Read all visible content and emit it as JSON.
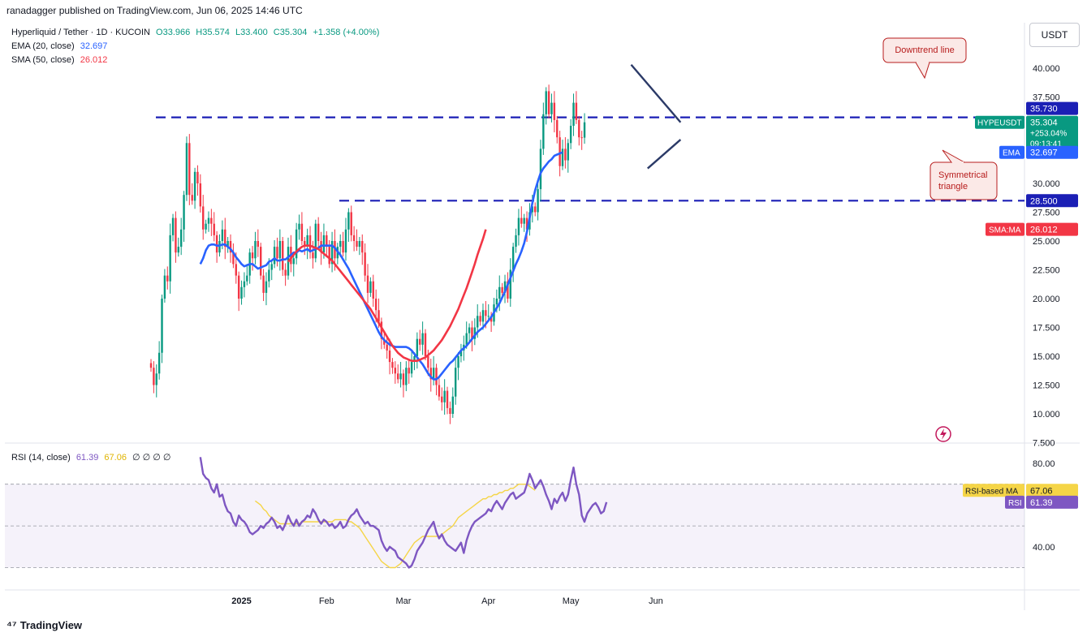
{
  "publisher": "ranadagger published on TradingView.com, Jun 06, 2025 14:46 UTC",
  "header": {
    "symbol": "Hyperliquid / Tether · 1D · KUCOIN",
    "open": "O33.966",
    "high": "H35.574",
    "low": "L33.400",
    "close": "C35.304",
    "change": "+1.358 (+4.00%)",
    "ema_label": "EMA (20, close)",
    "ema_value": "32.697",
    "sma_label": "SMA (50, close)",
    "sma_value": "26.012",
    "rsi_label": "RSI (14, close)",
    "rsi_value": "61.39",
    "rsi_ma_value": "67.06",
    "rsi_extra": "∅ ∅ ∅ ∅"
  },
  "currency_button": "USDT",
  "footer_brand": "TradingView",
  "annotations": {
    "downtrend": "Downtrend line",
    "triangle_line1": "Symmetrical",
    "triangle_line2": "triangle"
  },
  "price_tags": {
    "resistance": "35.730",
    "symbol": "HYPEUSDT",
    "last": "35.304",
    "pct": "+253.04%",
    "countdown": "09:13:41",
    "ema_tag": "EMA",
    "ema": "32.697",
    "support": "28.500",
    "sma_tag": "SMA:MA",
    "sma": "26.012"
  },
  "rsi_tags": {
    "ma_tag": "RSI-based MA",
    "ma": "67.06",
    "rsi_tag": "RSI",
    "rsi": "61.39"
  },
  "colors": {
    "up": "#089981",
    "down": "#f23645",
    "ema": "#2962ff",
    "sma": "#f23645",
    "levels": "#1b1fb5",
    "rsi": "#7e57c2",
    "rsi_ma": "#f5d547"
  },
  "chart_data": [
    {
      "type": "candlestick",
      "title": "Hyperliquid / Tether · 1D · KUCOIN",
      "ylim": [
        7.5,
        42.5
      ],
      "y_ticks": [
        "40.000",
        "37.500",
        "30.000",
        "27.500",
        "25.000",
        "22.500",
        "20.000",
        "17.500",
        "15.000",
        "12.500",
        "10.000",
        "7.500"
      ],
      "x_ticks": [
        "2025",
        "Feb",
        "Mar",
        "Apr",
        "May",
        "Jun"
      ],
      "x_range": [
        "2024-11-29",
        "2025-06-06"
      ],
      "horizontal_levels": [
        35.73,
        28.5
      ],
      "trendlines": [
        {
          "name": "Downtrend line",
          "from": [
            "2025-05-23",
            40.3
          ],
          "to": [
            "2025-06-10",
            35.3
          ]
        },
        {
          "name": "Symmetrical triangle",
          "from": [
            "2025-05-29",
            31.3
          ],
          "to": [
            "2025-06-10",
            33.8
          ]
        }
      ],
      "series": [
        {
          "name": "HYPEUSDT",
          "start": "2024-11-29",
          "close": [
            14.0,
            12.5,
            13.5,
            15.3,
            20.0,
            22.0,
            21.5,
            25.5,
            27.0,
            24.0,
            24.5,
            26.0,
            29.0,
            33.5,
            29.0,
            28.5,
            31.0,
            30.0,
            28.0,
            26.0,
            26.5,
            27.0,
            26.5,
            25.5,
            24.0,
            25.0,
            26.0,
            24.5,
            25.0,
            24.0,
            23.0,
            22.0,
            20.0,
            21.0,
            21.5,
            22.0,
            24.0,
            23.5,
            25.0,
            24.5,
            22.0,
            20.5,
            21.5,
            22.5,
            23.0,
            24.5,
            23.5,
            25.0,
            22.5,
            22.0,
            24.5,
            23.0,
            23.5,
            26.0,
            26.5,
            25.0,
            24.5,
            25.5,
            24.0,
            23.5,
            26.5,
            25.0,
            24.0,
            25.5,
            24.5,
            23.0,
            25.0,
            23.5,
            24.5,
            25.0,
            24.0,
            26.0,
            27.5,
            25.5,
            25.0,
            24.5,
            25.0,
            24.0,
            22.0,
            20.5,
            21.5,
            20.0,
            19.0,
            18.0,
            16.5,
            16.0,
            15.5,
            14.5,
            14.0,
            13.5,
            13.0,
            13.5,
            12.5,
            14.0,
            13.5,
            14.5,
            15.0,
            16.5,
            16.0,
            17.0,
            15.0,
            14.0,
            13.0,
            14.0,
            12.5,
            11.5,
            11.0,
            12.0,
            10.5,
            10.0,
            11.5,
            14.0,
            15.0,
            15.5,
            16.0,
            17.0,
            17.5,
            16.5,
            17.5,
            18.5,
            18.0,
            19.0,
            18.5,
            18.5,
            18.0,
            19.5,
            20.0,
            21.0,
            20.5,
            21.5,
            20.0,
            22.5,
            24.5,
            25.5,
            27.0,
            26.5,
            27.0,
            26.0,
            27.5,
            28.0,
            27.5,
            29.5,
            33.0,
            36.0,
            38.0,
            36.0,
            37.0,
            35.5,
            34.0,
            31.5,
            33.0,
            32.0,
            33.5,
            35.0,
            37.0,
            35.5,
            34.0,
            33.97,
            35.3
          ]
        },
        {
          "name": "EMA (20, close)",
          "start": "2024-12-17",
          "values": [
            23.0,
            23.5,
            24.2,
            24.6,
            24.7,
            24.7,
            24.6,
            24.6,
            24.7,
            24.7,
            24.5,
            24.3,
            24.0,
            23.6,
            23.3,
            23.0,
            22.8,
            22.9,
            23.0,
            23.0,
            22.8,
            22.6,
            22.7,
            22.8,
            22.9,
            23.2,
            23.3,
            23.5,
            23.3,
            23.3,
            23.4,
            23.4,
            23.6,
            23.8,
            24.0,
            24.0,
            24.2,
            24.1,
            24.2,
            24.3,
            24.1,
            24.2,
            24.3,
            24.4,
            24.6,
            24.6,
            24.6,
            24.6,
            24.6,
            24.4,
            24.1,
            23.8,
            23.4,
            23.0,
            22.6,
            22.1,
            21.6,
            21.1,
            20.6,
            20.1,
            19.6,
            19.1,
            18.6,
            18.1,
            17.6,
            17.1,
            16.7,
            16.4,
            16.2,
            16.0,
            15.9,
            15.8,
            15.8,
            15.8,
            15.8,
            15.8,
            15.7,
            15.5,
            15.2,
            14.9,
            14.6,
            14.3,
            13.9,
            13.5,
            13.2,
            13.0,
            13.0,
            13.2,
            13.5,
            13.8,
            14.1,
            14.4,
            14.6,
            14.9,
            15.2,
            15.5,
            15.7,
            15.9,
            16.2,
            16.5,
            16.8,
            17.1,
            17.3,
            17.5,
            17.8,
            18.1,
            18.4,
            18.8,
            19.2,
            19.6,
            20.1,
            20.6,
            21.2,
            21.8,
            22.4,
            23.0,
            23.5,
            24.1,
            24.8,
            25.8,
            27.0,
            28.3,
            29.4,
            30.2,
            30.9,
            31.3,
            31.6,
            31.9,
            32.1,
            32.4,
            32.5,
            32.6,
            32.7
          ]
        },
        {
          "name": "SMA (50, close)",
          "start": "2025-01-18",
          "values": [
            23.2,
            23.5,
            23.8,
            24.1,
            24.3,
            24.5,
            24.6,
            24.6,
            24.6,
            24.5,
            24.4,
            24.3,
            24.1,
            23.9,
            23.7,
            23.5,
            23.3,
            23.0,
            22.7,
            22.4,
            22.1,
            21.8,
            21.5,
            21.2,
            20.9,
            20.6,
            20.3,
            20.0,
            19.7,
            19.4,
            19.1,
            18.7,
            18.3,
            17.9,
            17.5,
            17.1,
            16.7,
            16.3,
            15.9,
            15.6,
            15.3,
            15.1,
            14.9,
            14.8,
            14.7,
            14.6,
            14.6,
            14.6,
            14.7,
            14.8,
            14.9,
            15.1,
            15.3,
            15.5,
            15.8,
            16.1,
            16.4,
            16.8,
            17.2,
            17.6,
            18.1,
            18.6,
            19.1,
            19.7,
            20.3,
            20.9,
            21.6,
            22.3,
            23.0,
            23.8,
            24.5,
            25.2,
            26.0
          ]
        }
      ]
    },
    {
      "type": "line",
      "title": "RSI (14, close)",
      "ylim": [
        20,
        85
      ],
      "y_ticks": [
        "80.00",
        "40.00"
      ],
      "bands": {
        "upper": 70,
        "middle": 50,
        "lower": 30
      },
      "series": [
        {
          "name": "RSI (14, close)",
          "start": "2024-12-17",
          "values": [
            83,
            75,
            73,
            72,
            68,
            66,
            70,
            64,
            65,
            60,
            57,
            56,
            52,
            50,
            55,
            53,
            52,
            50,
            47,
            46,
            47,
            48,
            50,
            49,
            51,
            52,
            54,
            52,
            49,
            50,
            48,
            51,
            55,
            52,
            50,
            53,
            50,
            52,
            53,
            55,
            54,
            58,
            56,
            53,
            51,
            53,
            52,
            50,
            51,
            49,
            50,
            52,
            49,
            50,
            53,
            55,
            56,
            58,
            55,
            53,
            51,
            52,
            50,
            50,
            49,
            48,
            43,
            40,
            38,
            40,
            39,
            38,
            35,
            34,
            33,
            32,
            30,
            31,
            34,
            38,
            40,
            42,
            45,
            48,
            50,
            52,
            47,
            44,
            46,
            43,
            41,
            40,
            39,
            38,
            40,
            42,
            37,
            43,
            47,
            50,
            52,
            53,
            54,
            55,
            56,
            58,
            57,
            60,
            62,
            60,
            58,
            61,
            63,
            65,
            66,
            63,
            64,
            65,
            66,
            70,
            75,
            72,
            68,
            70,
            72,
            69,
            65,
            62,
            58,
            63,
            61,
            64,
            66,
            62,
            65,
            72,
            78,
            70,
            65,
            55,
            52,
            56,
            58,
            60,
            61,
            59,
            56,
            57,
            61.39
          ]
        },
        {
          "name": "RSI-based MA",
          "start": "2025-01-06",
          "values": [
            62,
            61,
            60,
            58,
            57,
            55,
            54,
            53,
            52,
            51,
            51,
            51,
            51,
            51,
            51,
            51,
            51,
            52,
            52,
            52,
            52,
            52,
            52,
            52,
            52,
            52,
            52,
            52,
            52,
            53,
            53,
            53,
            53,
            53,
            52,
            52,
            51,
            50,
            49,
            47,
            45,
            43,
            41,
            39,
            37,
            35,
            33,
            32,
            31,
            30,
            30,
            30,
            31,
            32,
            34,
            36,
            38,
            40,
            42,
            43,
            44,
            45,
            45,
            45,
            45,
            45,
            45,
            45,
            46,
            47,
            48,
            49,
            50,
            52,
            54,
            55,
            56,
            57,
            58,
            59,
            60,
            61,
            62,
            63,
            63,
            64,
            64,
            65,
            65,
            66,
            66,
            67,
            67,
            68,
            68,
            69,
            70,
            70,
            70,
            70,
            69,
            68,
            67.06
          ]
        }
      ]
    }
  ]
}
